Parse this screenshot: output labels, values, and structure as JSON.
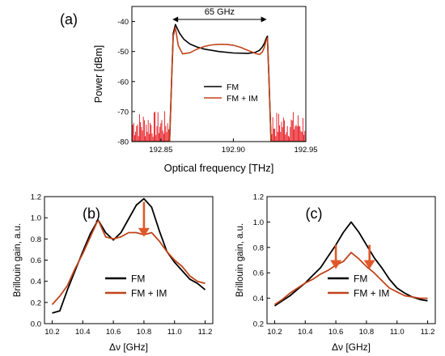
{
  "colors": {
    "fm": "#000000",
    "fm_im": "#c0441b",
    "noise_red": "#e8141c",
    "arrow": "#e0582a"
  },
  "chart_data": [
    {
      "id": "a",
      "type": "line",
      "panel_label": "(a)",
      "xlabel": "Optical frequency [THz]",
      "ylabel": "Power [dBm]",
      "xlim": [
        192.83,
        192.95
      ],
      "ylim": [
        -80,
        -35
      ],
      "xticks": [
        "192.85",
        "192.90",
        "192.95"
      ],
      "xtick_values": [
        192.85,
        192.9,
        192.95
      ],
      "yticks": [
        "-40",
        "-50",
        "-60",
        "-70",
        "-80"
      ],
      "ytick_values": [
        -40,
        -50,
        -60,
        -70,
        -80
      ],
      "annotation": "65 GHz",
      "annotation_span": [
        192.858,
        192.923
      ],
      "legend_placement": "center-right",
      "series": [
        {
          "name": "FM",
          "x": [
            192.83,
            192.856,
            192.8575,
            192.8585,
            192.86,
            192.863,
            192.866,
            192.87,
            192.875,
            192.88,
            192.89,
            192.9,
            192.91,
            192.915,
            192.918,
            192.92,
            192.9215,
            192.9225,
            192.9235,
            192.9245,
            192.926,
            192.95
          ],
          "y": [
            -80,
            -80,
            -58,
            -44,
            -41,
            -44,
            -46,
            -47.5,
            -48.5,
            -49.2,
            -50,
            -50.5,
            -50.6,
            -50.3,
            -49.6,
            -48.5,
            -47.2,
            -45.8,
            -44.9,
            -58,
            -80,
            -80
          ]
        },
        {
          "name": "FM + IM",
          "x": [
            192.83,
            192.856,
            192.8575,
            192.8585,
            192.86,
            192.862,
            192.865,
            192.87,
            192.875,
            192.88,
            192.885,
            192.89,
            192.895,
            192.9,
            192.905,
            192.91,
            192.915,
            192.918,
            192.92,
            192.9215,
            192.9225,
            192.9235,
            192.9245,
            192.926,
            192.95
          ],
          "y": [
            -80,
            -80,
            -58,
            -45,
            -42,
            -48,
            -50.8,
            -50.4,
            -49.2,
            -48.3,
            -47.8,
            -47.6,
            -47.6,
            -47.9,
            -48.6,
            -49.6,
            -50.6,
            -51,
            -50.2,
            -48.5,
            -46.5,
            -45.5,
            -58,
            -80,
            -80
          ]
        }
      ]
    },
    {
      "id": "b",
      "type": "line",
      "panel_label": "(b)",
      "xlabel": "Δν [GHz]",
      "ylabel": "Brillouin gain, a.u.",
      "xlim": [
        10.15,
        11.25
      ],
      "ylim": [
        0.0,
        1.2
      ],
      "xticks": [
        "10.2",
        "10.4",
        "10.6",
        "10.8",
        "11.0",
        "11.2"
      ],
      "xtick_values": [
        10.2,
        10.4,
        10.6,
        10.8,
        11.0,
        11.2
      ],
      "yticks": [
        "0.0",
        "0.2",
        "0.4",
        "0.6",
        "0.8",
        "1.0",
        "1.2"
      ],
      "ytick_values": [
        0.0,
        0.2,
        0.4,
        0.6,
        0.8,
        1.0,
        1.2
      ],
      "arrows": [
        {
          "x": 10.8,
          "from": 1.15,
          "to": 0.82
        }
      ],
      "legend_placement": "bottom-center",
      "series": [
        {
          "name": "FM",
          "x": [
            10.2,
            10.25,
            10.3,
            10.35,
            10.4,
            10.45,
            10.5,
            10.55,
            10.6,
            10.65,
            10.7,
            10.75,
            10.8,
            10.85,
            10.9,
            10.95,
            11.0,
            11.05,
            11.1,
            11.15,
            11.2
          ],
          "y": [
            0.1,
            0.12,
            0.32,
            0.5,
            0.68,
            0.85,
            0.98,
            0.86,
            0.79,
            0.86,
            0.99,
            1.12,
            1.18,
            1.1,
            0.88,
            0.68,
            0.58,
            0.5,
            0.42,
            0.38,
            0.32
          ]
        },
        {
          "name": "FM + IM",
          "x": [
            10.2,
            10.25,
            10.3,
            10.35,
            10.4,
            10.45,
            10.5,
            10.55,
            10.6,
            10.65,
            10.7,
            10.75,
            10.8,
            10.85,
            10.9,
            10.95,
            11.0,
            11.05,
            11.1,
            11.15,
            11.2
          ],
          "y": [
            0.18,
            0.26,
            0.36,
            0.52,
            0.66,
            0.82,
            0.98,
            0.82,
            0.8,
            0.82,
            0.86,
            0.86,
            0.84,
            0.86,
            0.78,
            0.68,
            0.6,
            0.54,
            0.45,
            0.4,
            0.38
          ]
        }
      ]
    },
    {
      "id": "c",
      "type": "line",
      "panel_label": "(c)",
      "xlabel": "Δν [GHz]",
      "ylabel": "Brillouin gain, a.u.",
      "xlim": [
        10.15,
        11.25
      ],
      "ylim": [
        0.2,
        1.2
      ],
      "xticks": [
        "10.2",
        "10.4",
        "10.6",
        "10.8",
        "11.0",
        "11.2"
      ],
      "xtick_values": [
        10.2,
        10.4,
        10.6,
        10.8,
        11.0,
        11.2
      ],
      "yticks": [
        "0.2",
        "0.4",
        "0.6",
        "0.8",
        "1.0",
        "1.2"
      ],
      "ytick_values": [
        0.2,
        0.4,
        0.6,
        0.8,
        1.0,
        1.2
      ],
      "arrows": [
        {
          "x": 10.6,
          "from": 0.82,
          "to": 0.63
        },
        {
          "x": 10.82,
          "from": 0.82,
          "to": 0.63
        }
      ],
      "legend_placement": "bottom-center",
      "series": [
        {
          "name": "FM",
          "x": [
            10.2,
            10.25,
            10.3,
            10.35,
            10.4,
            10.45,
            10.5,
            10.55,
            10.6,
            10.65,
            10.7,
            10.75,
            10.8,
            10.85,
            10.9,
            10.95,
            11.0,
            11.05,
            11.1,
            11.15,
            11.2
          ],
          "y": [
            0.34,
            0.38,
            0.42,
            0.47,
            0.52,
            0.58,
            0.64,
            0.73,
            0.82,
            0.92,
            1.0,
            0.92,
            0.82,
            0.72,
            0.64,
            0.55,
            0.48,
            0.44,
            0.41,
            0.39,
            0.38
          ]
        },
        {
          "name": "FM + IM",
          "x": [
            10.2,
            10.25,
            10.3,
            10.35,
            10.4,
            10.45,
            10.5,
            10.55,
            10.6,
            10.65,
            10.7,
            10.75,
            10.8,
            10.85,
            10.9,
            10.95,
            11.0,
            11.05,
            11.1,
            11.15,
            11.2
          ],
          "y": [
            0.35,
            0.39,
            0.44,
            0.48,
            0.52,
            0.55,
            0.59,
            0.62,
            0.66,
            0.69,
            0.76,
            0.71,
            0.65,
            0.6,
            0.54,
            0.48,
            0.45,
            0.42,
            0.41,
            0.4,
            0.4
          ]
        }
      ]
    }
  ]
}
